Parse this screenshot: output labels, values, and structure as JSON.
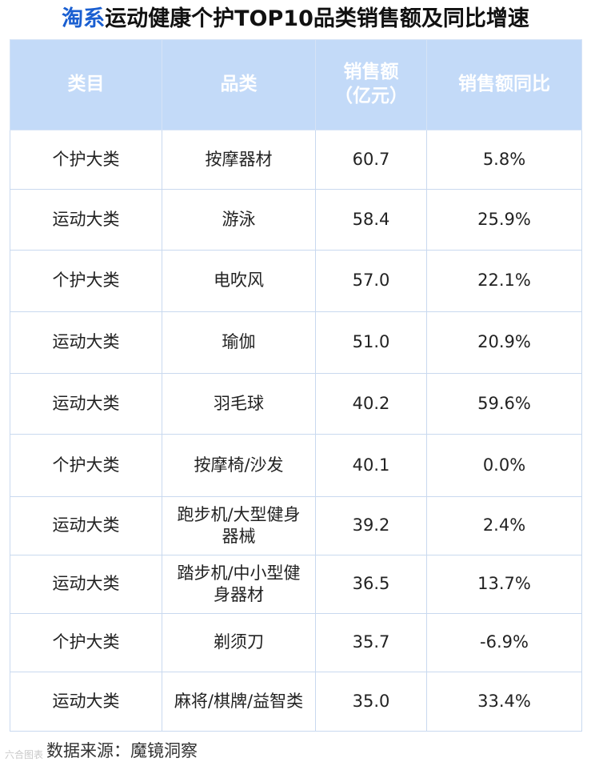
{
  "title": {
    "brand": "淘系",
    "rest": "运动健康个护TOP10品类销售额及同比增速"
  },
  "columns": {
    "category": "类目",
    "product": "品类",
    "sales_line1": "销售额",
    "sales_line2": "（亿元）",
    "yoy": "销售额同比"
  },
  "rows": [
    {
      "category": "个护大类",
      "product": "按摩器材",
      "sales": "60.7",
      "yoy": "5.8%"
    },
    {
      "category": "运动大类",
      "product": "游泳",
      "sales": "58.4",
      "yoy": "25.9%"
    },
    {
      "category": "个护大类",
      "product": "电吹风",
      "sales": "57.0",
      "yoy": "22.1%"
    },
    {
      "category": "运动大类",
      "product": "瑜伽",
      "sales": "51.0",
      "yoy": "20.9%"
    },
    {
      "category": "运动大类",
      "product": "羽毛球",
      "sales": "40.2",
      "yoy": "59.6%"
    },
    {
      "category": "个护大类",
      "product": "按摩椅/沙发",
      "sales": "40.1",
      "yoy": "0.0%"
    },
    {
      "category": "运动大类",
      "product": "跑步机/大型健身器械",
      "sales": "39.2",
      "yoy": "2.4%"
    },
    {
      "category": "运动大类",
      "product": "踏步机/中小型健身器材",
      "sales": "36.5",
      "yoy": "13.7%"
    },
    {
      "category": "个护大类",
      "product": "剃须刀",
      "sales": "35.7",
      "yoy": "-6.9%"
    },
    {
      "category": "运动大类",
      "product": "麻将/棋牌/益智类",
      "sales": "35.0",
      "yoy": "33.4%"
    }
  ],
  "source": "数据来源：魔镜洞察",
  "watermark": "六合图表",
  "colors": {
    "brand": "#1a5fd1",
    "header_bg": "#c3daf8",
    "positive": "#e02b2b",
    "negative": "#1fa34a"
  },
  "chart_data": {
    "type": "table",
    "title": "淘系运动健康个护TOP10品类销售额及同比增速",
    "columns": [
      "类目",
      "品类",
      "销售额（亿元）",
      "销售额同比"
    ],
    "categories": [
      "按摩器材",
      "游泳",
      "电吹风",
      "瑜伽",
      "羽毛球",
      "按摩椅/沙发",
      "跑步机/大型健身器械",
      "踏步机/中小型健身器材",
      "剃须刀",
      "麻将/棋牌/益智类"
    ],
    "groups": [
      "个护大类",
      "运动大类",
      "个护大类",
      "运动大类",
      "运动大类",
      "个护大类",
      "运动大类",
      "运动大类",
      "个护大类",
      "运动大类"
    ],
    "series": [
      {
        "name": "销售额（亿元）",
        "values": [
          60.7,
          58.4,
          57.0,
          51.0,
          40.2,
          40.1,
          39.2,
          36.5,
          35.7,
          35.0
        ]
      },
      {
        "name": "销售额同比",
        "values": [
          5.8,
          25.9,
          22.1,
          20.9,
          59.6,
          0.0,
          2.4,
          13.7,
          -6.9,
          33.4
        ]
      }
    ]
  }
}
